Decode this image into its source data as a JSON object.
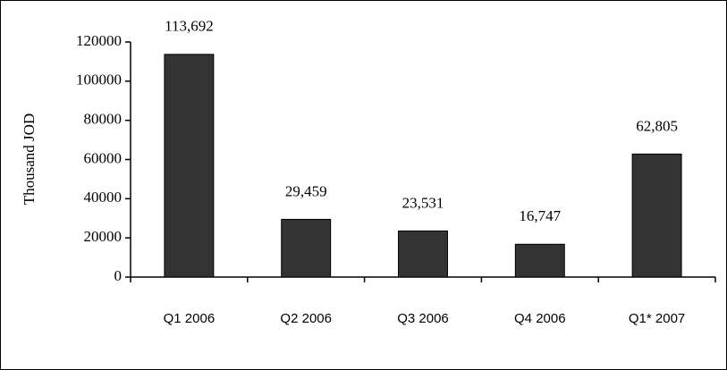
{
  "chart_data": {
    "type": "bar",
    "y_label": "Thousand JOD",
    "categories": [
      "Q1 2006",
      "Q2 2006",
      "Q3 2006",
      "Q4 2006",
      "Q1* 2007"
    ],
    "values": [
      113692,
      29459,
      23531,
      16747,
      62805
    ],
    "value_labels": [
      "113,692",
      "29,459",
      "23,531",
      "16,747",
      "62,805"
    ],
    "color": "#333333",
    "ylim": [
      0,
      120000
    ],
    "yticks": [
      0,
      20000,
      40000,
      60000,
      80000,
      100000,
      120000
    ],
    "grid": false
  }
}
